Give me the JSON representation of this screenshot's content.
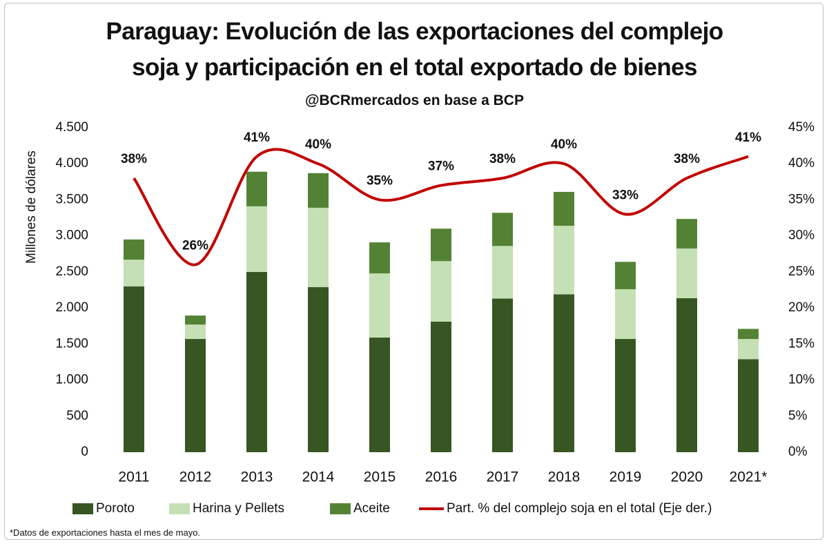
{
  "chart_data": {
    "type": "bar",
    "stacked": true,
    "title": [
      "Paraguay: Evolución de las exportaciones del complejo",
      "soja y participación en el total exportado de bienes"
    ],
    "subtitle": "@BCRmercados en base a BCP",
    "y_label": "Millones de dólares",
    "footnote": "*Datos de exportaciones hasta el mes de mayo.",
    "categories": [
      "2011",
      "2012",
      "2013",
      "2014",
      "2015",
      "2016",
      "2017",
      "2018",
      "2019",
      "2020",
      "2021*"
    ],
    "series": [
      {
        "name": "Poroto",
        "color": "#375623",
        "values": [
          2300,
          1570,
          2500,
          2290,
          1590,
          1810,
          2130,
          2190,
          1570,
          2135,
          1290
        ]
      },
      {
        "name": "Harina y Pellets",
        "color": "#c5e0b4",
        "values": [
          370,
          200,
          910,
          1100,
          890,
          840,
          730,
          950,
          690,
          690,
          280
        ]
      },
      {
        "name": "Aceite",
        "color": "#548235",
        "values": [
          280,
          125,
          480,
          480,
          430,
          450,
          460,
          470,
          380,
          410,
          140
        ]
      },
      {
        "name": "Part. % del complejo soja en el total (Eje der.)",
        "type": "line",
        "axis": "y2",
        "color": "#c00000",
        "values": [
          38,
          26,
          41,
          40,
          35,
          37,
          38,
          40,
          33,
          38,
          41
        ],
        "value_labels": [
          "38%",
          "26%",
          "41%",
          "40%",
          "35%",
          "37%",
          "38%",
          "40%",
          "33%",
          "38%",
          "41%"
        ]
      }
    ],
    "ylim": [
      0,
      4500
    ],
    "yticks": [
      0,
      500,
      {
        "value": 1000,
        "label": "1.000"
      },
      {
        "value": 1500,
        "label": "1.500"
      },
      {
        "value": 2000,
        "label": "2.000"
      },
      {
        "value": 2500,
        "label": "2.500"
      },
      {
        "value": 3000,
        "label": "3.000"
      },
      {
        "value": 3500,
        "label": "3.500"
      },
      {
        "value": 4000,
        "label": "4.000"
      },
      {
        "value": 4500,
        "label": "4.500"
      }
    ],
    "y2lim": [
      0,
      45
    ],
    "y2ticks": [
      {
        "value": 0,
        "label": "0%"
      },
      {
        "value": 5,
        "label": "5%"
      },
      {
        "value": 10,
        "label": "10%"
      },
      {
        "value": 15,
        "label": "15%"
      },
      {
        "value": 20,
        "label": "20%"
      },
      {
        "value": 25,
        "label": "25%"
      },
      {
        "value": 30,
        "label": "30%"
      },
      {
        "value": 35,
        "label": "35%"
      },
      {
        "value": 40,
        "label": "40%"
      },
      {
        "value": 45,
        "label": "45%"
      }
    ],
    "grid": false,
    "legend": "bottom"
  }
}
